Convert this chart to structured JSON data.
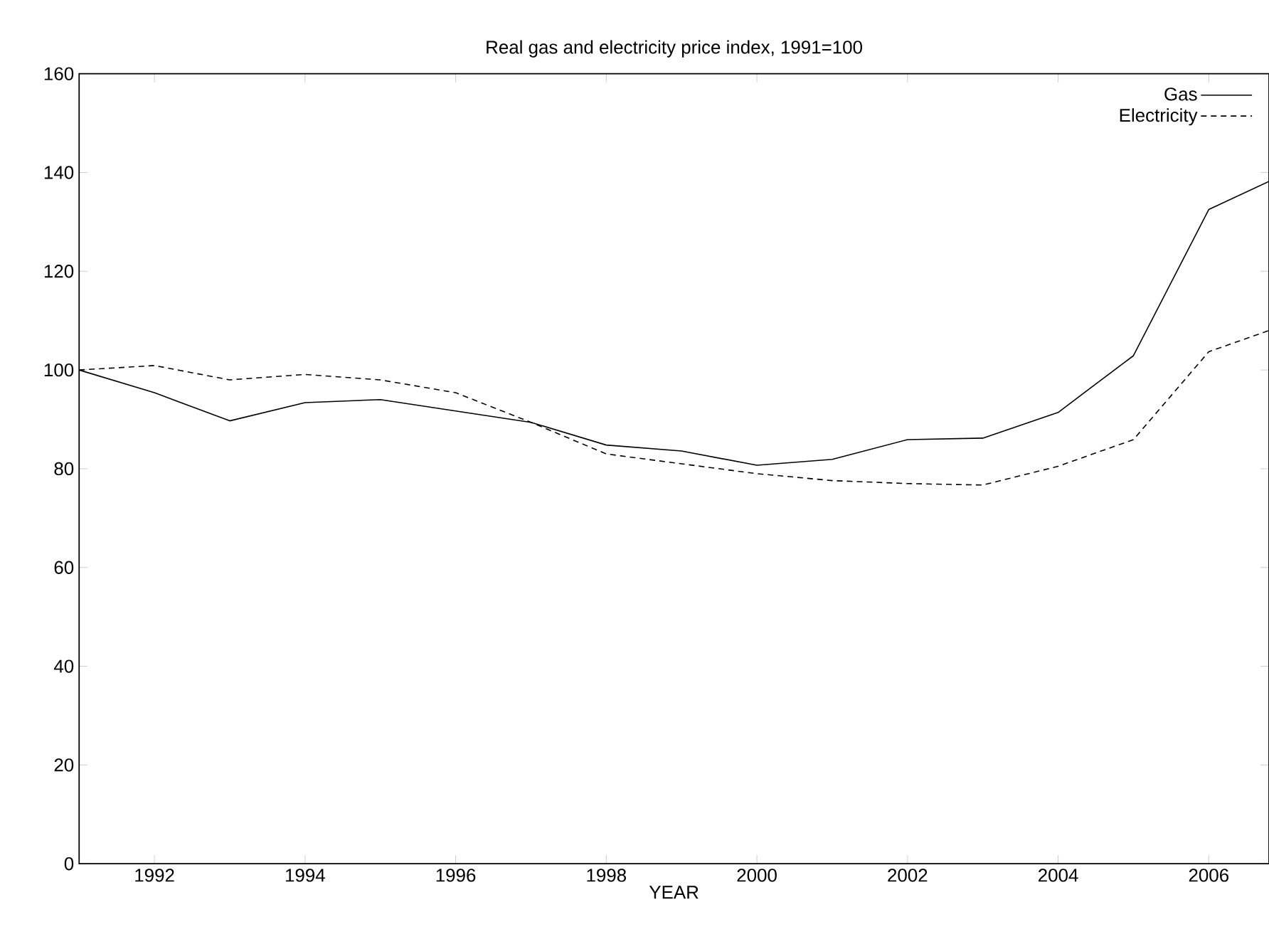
{
  "chart_data": {
    "type": "line",
    "title": "Real gas and electricity price index, 1991=100",
    "xlabel": "YEAR",
    "xlim": [
      1991,
      2006.8
    ],
    "xticks": [
      1992,
      1994,
      1996,
      1998,
      2000,
      2002,
      2004,
      2006
    ],
    "ylim": [
      0,
      160
    ],
    "yticks": [
      0,
      20,
      40,
      60,
      80,
      100,
      120,
      140,
      160
    ],
    "x": [
      1991,
      1992,
      1993,
      1994,
      1995,
      1996,
      1997,
      1998,
      1999,
      2000,
      2001,
      2002,
      2003,
      2004,
      2005,
      2006,
      2006.8
    ],
    "series": [
      {
        "name": "Gas",
        "color": "#000000",
        "line_style": "solid",
        "values": [
          100,
          95.4,
          89.7,
          93.4,
          94.0,
          91.7,
          89.4,
          84.8,
          83.6,
          80.7,
          81.9,
          85.9,
          86.2,
          91.4,
          102.9,
          132.5,
          138.2
        ]
      },
      {
        "name": "Electricity",
        "color": "#000000",
        "line_style": "dashed",
        "values": [
          100,
          100.9,
          98.0,
          99.1,
          98.0,
          95.4,
          89.4,
          83.0,
          81.0,
          79.0,
          77.6,
          77.0,
          76.7,
          80.5,
          85.9,
          103.7,
          108.0
        ]
      }
    ],
    "legend": "top right",
    "grid": false
  }
}
